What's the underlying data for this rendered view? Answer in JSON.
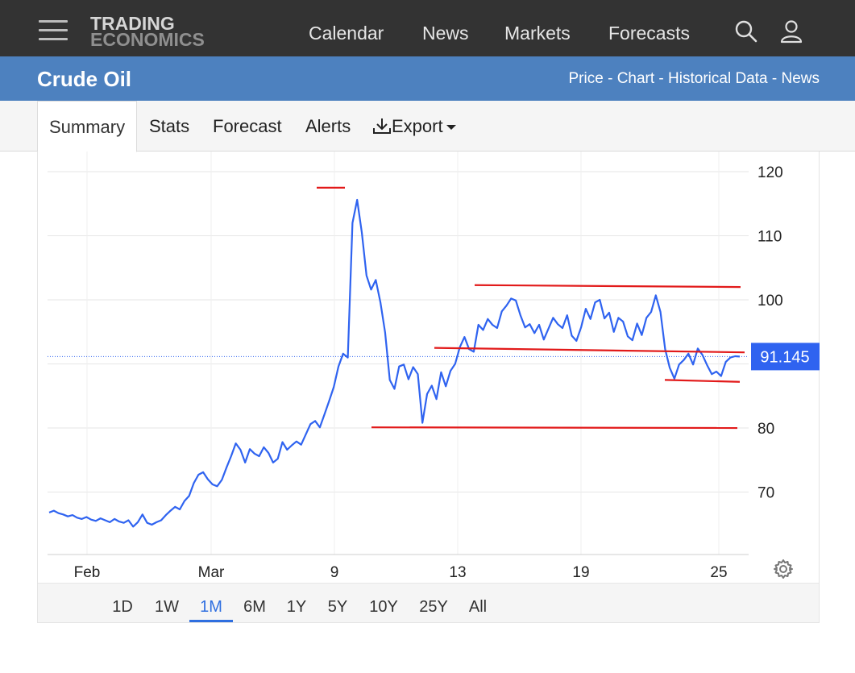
{
  "header": {
    "logo_line1": "TRADING",
    "logo_line2": "ECONOMICS",
    "nav": [
      "Calendar",
      "News",
      "Markets",
      "Forecasts"
    ]
  },
  "titlebar": {
    "title": "Crude Oil",
    "links": [
      "Price",
      "Chart",
      "Historical Data",
      "News"
    ],
    "separator": " - "
  },
  "tabs": [
    "Summary",
    "Stats",
    "Forecast",
    "Alerts",
    "Export"
  ],
  "active_tab": "Summary",
  "ranges": [
    "1D",
    "1W",
    "1M",
    "6M",
    "1Y",
    "5Y",
    "10Y",
    "25Y",
    "All"
  ],
  "active_range": "1M",
  "colors": {
    "topbar": "#333333",
    "titlebar": "#4d81bf",
    "line": "#2f63f0",
    "trendline": "#e21a1a",
    "price_label_bg": "#2f63f0",
    "active_range": "#2f6fe0"
  },
  "chart_data": {
    "type": "line",
    "x_tick_labels": [
      "Feb",
      "Mar",
      "9",
      "13",
      "19",
      "25"
    ],
    "y_tick_labels": [
      "120",
      "110",
      "100",
      "80",
      "70"
    ],
    "ylim": [
      61,
      122
    ],
    "current_price_label": "91.145",
    "current_price": 91.145,
    "series": [
      {
        "values": [
          66.8,
          67.1,
          66.7,
          66.5,
          66.2,
          66.4,
          66.0,
          65.8,
          66.1,
          65.7,
          65.5,
          65.9,
          65.6,
          65.3,
          65.8,
          65.4,
          65.2,
          65.6,
          64.6,
          65.3,
          66.5,
          65.2,
          64.9,
          65.3,
          65.6,
          66.4,
          67.1,
          67.7,
          67.3,
          68.6,
          69.4,
          71.4,
          72.7,
          73.1,
          72.0,
          71.2,
          70.9,
          71.9,
          73.8,
          75.6,
          77.6,
          76.6,
          74.6,
          76.7,
          76.0,
          75.6,
          77.0,
          76.1,
          74.6,
          75.2,
          77.8,
          76.6,
          77.3,
          77.9,
          77.4,
          79.0,
          80.6,
          81.1,
          80.1,
          82.1,
          84.2,
          86.4,
          89.6,
          91.6,
          91.0,
          112.0,
          115.6,
          110.5,
          103.8,
          101.6,
          103.1,
          99.6,
          94.9,
          87.5,
          86.1,
          89.6,
          89.9,
          87.6,
          89.5,
          88.4,
          80.8,
          85.3,
          86.6,
          84.5,
          88.7,
          86.5,
          88.9,
          90.0,
          92.6,
          94.2,
          92.3,
          91.9,
          96.1,
          95.3,
          97.0,
          96.1,
          95.6,
          98.2,
          99.1,
          100.2,
          99.9,
          97.6,
          95.7,
          96.2,
          94.8,
          96.1,
          93.8,
          95.5,
          97.2,
          96.2,
          95.6,
          97.6,
          94.4,
          93.6,
          95.7,
          98.6,
          97.0,
          99.6,
          100.0,
          97.1,
          98.0,
          95.0,
          97.2,
          96.6,
          94.3,
          93.7,
          96.3,
          94.5,
          97.2,
          98.1,
          100.7,
          98.1,
          92.3,
          89.4,
          87.7,
          89.9,
          90.6,
          91.6,
          89.9,
          92.4,
          91.4,
          89.8,
          88.4,
          88.8,
          88.1,
          90.3,
          91.0,
          91.2,
          91.145
        ],
        "x_range": [
          "Feb (start)",
          "25 (end)"
        ]
      }
    ],
    "trendlines": [
      {
        "from": 117.5,
        "to": 117.5,
        "note": "peak marker near 9"
      },
      {
        "from": 102.3,
        "to": 102.0
      },
      {
        "from": 92.5,
        "to": 91.8
      },
      {
        "from": 87.5,
        "to": 87.2
      },
      {
        "from": 80.1,
        "to": 80.0
      }
    ],
    "grid": true
  }
}
